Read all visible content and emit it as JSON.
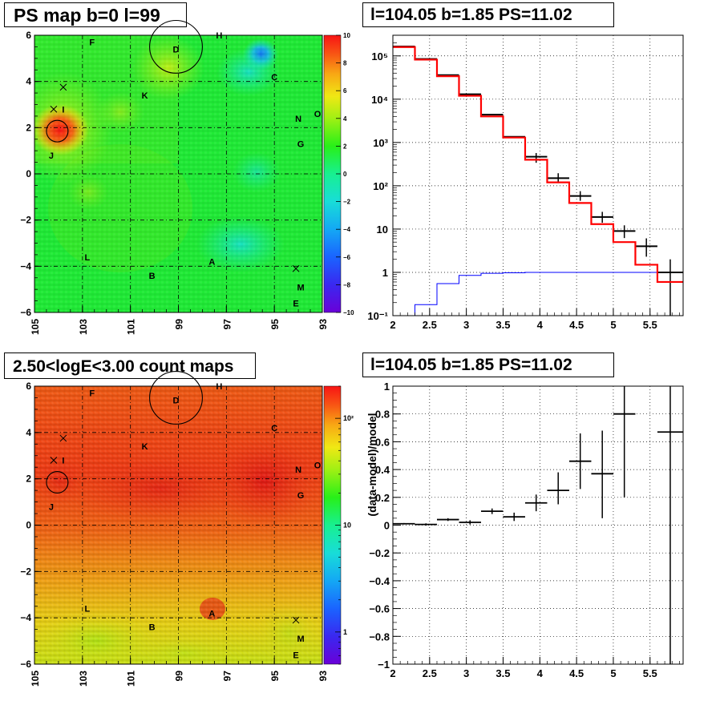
{
  "panels": {
    "ps_map": {
      "title": "PS map b=0 l=99"
    },
    "spectrum": {
      "title": "l=104.05 b=1.85 PS=11.02"
    },
    "count_map": {
      "title": "2.50<logE<3.00 count maps"
    },
    "residual": {
      "title": "l=104.05 b=1.85 PS=11.02"
    }
  },
  "chart_data": [
    {
      "type": "heatmap",
      "title": "PS map b=0 l=99",
      "x_ticks": [
        "105",
        "103",
        "101",
        "99",
        "97",
        "95",
        "93"
      ],
      "y_ticks": [
        "6",
        "4",
        "2",
        "0",
        "-2",
        "-4",
        "-6"
      ],
      "xlim": [
        105,
        93
      ],
      "ylim": [
        -6,
        6
      ],
      "colorbar": {
        "range": [
          -10,
          10
        ],
        "tick_labels": [
          "10",
          "8",
          "6",
          "4",
          "2",
          "0",
          "−2",
          "−4",
          "−6",
          "−8",
          "−10"
        ]
      },
      "source_labels": [
        {
          "text": "F",
          "l": 102.6,
          "b": 5.7
        },
        {
          "text": "D",
          "l": 99.1,
          "b": 5.4
        },
        {
          "text": "H",
          "l": 97.3,
          "b": 6.0
        },
        {
          "text": "C",
          "l": 95.0,
          "b": 4.2
        },
        {
          "text": "K",
          "l": 100.4,
          "b": 3.4
        },
        {
          "text": "N",
          "l": 94.0,
          "b": 2.4
        },
        {
          "text": "O",
          "l": 93.2,
          "b": 2.6
        },
        {
          "text": "G",
          "l": 93.9,
          "b": 1.3
        },
        {
          "text": "I",
          "l": 103.8,
          "b": 2.8
        },
        {
          "text": "J",
          "l": 104.3,
          "b": 0.8
        },
        {
          "text": "L",
          "l": 102.8,
          "b": -3.6
        },
        {
          "text": "A",
          "l": 97.6,
          "b": -3.8
        },
        {
          "text": "B",
          "l": 100.1,
          "b": -4.4
        },
        {
          "text": "M",
          "l": 93.9,
          "b": -4.9
        },
        {
          "text": "E",
          "l": 94.1,
          "b": -5.6
        }
      ],
      "markers": [
        {
          "shape": "circle",
          "l": 99.1,
          "b": 5.5,
          "radius_deg": 1.1
        },
        {
          "shape": "circle",
          "l": 104.05,
          "b": 1.85,
          "radius_deg": 0.45
        },
        {
          "shape": "cross",
          "l": 103.8,
          "b": 3.75
        },
        {
          "shape": "cross",
          "l": 104.2,
          "b": 2.8
        },
        {
          "shape": "cross",
          "l": 94.1,
          "b": -4.1
        }
      ]
    },
    {
      "type": "line",
      "title": "l=104.05 b=1.85 PS=11.02",
      "xlim": [
        2.0,
        5.95
      ],
      "ylim": [
        0.1,
        300000
      ],
      "y_scale": "log",
      "x_ticks": [
        "2",
        "2.5",
        "3",
        "3.5",
        "4",
        "4.5",
        "5",
        "5.5"
      ],
      "y_ticks": [
        "10⁻¹",
        "1",
        "10",
        "10²",
        "10³",
        "10⁴",
        "10⁵"
      ],
      "bin_edges": [
        2.0,
        2.3,
        2.6,
        2.9,
        3.2,
        3.5,
        3.8,
        4.1,
        4.4,
        4.7,
        5.0,
        5.3,
        5.6,
        5.95
      ],
      "series": [
        {
          "color": "#000000",
          "style": "points_with_errors",
          "values": [
            165000,
            85000,
            36000,
            13000,
            4400,
            1350,
            470,
            150,
            58,
            19,
            9,
            4,
            1.0
          ],
          "err_low": [
            0,
            0,
            0,
            0,
            0,
            0,
            130,
            35,
            13,
            5,
            2.8,
            1.7,
            0.9
          ],
          "err_high": [
            0,
            0,
            0,
            0,
            0,
            0,
            100,
            45,
            17,
            6,
            3.2,
            2.1,
            1.0
          ]
        },
        {
          "color": "#ff0000",
          "style": "histogram",
          "values": [
            160000,
            82000,
            34000,
            12000,
            4000,
            1300,
            400,
            120,
            40,
            13,
            5,
            1.5,
            0.6
          ]
        },
        {
          "color": "#0000ff",
          "style": "histogram",
          "values": [
            0.1,
            0.18,
            0.55,
            0.85,
            0.95,
            0.98,
            1.0,
            1.0,
            1.0,
            1.0,
            1.0,
            1.0,
            1.0
          ]
        }
      ]
    },
    {
      "type": "heatmap",
      "title": "2.50<logE<3.00 count maps",
      "x_ticks": [
        "105",
        "103",
        "101",
        "99",
        "97",
        "95",
        "93"
      ],
      "y_ticks": [
        "6",
        "4",
        "2",
        "0",
        "-2",
        "-4",
        "-6"
      ],
      "xlim": [
        105,
        93
      ],
      "ylim": [
        -6,
        6
      ],
      "colorbar": {
        "scale": "log",
        "range": [
          0.5,
          200
        ],
        "tick_labels": [
          "10²",
          "10",
          "1"
        ]
      },
      "source_labels": [
        {
          "text": "F",
          "l": 102.6,
          "b": 5.7
        },
        {
          "text": "D",
          "l": 99.1,
          "b": 5.4
        },
        {
          "text": "H",
          "l": 97.3,
          "b": 6.0
        },
        {
          "text": "C",
          "l": 95.0,
          "b": 4.2
        },
        {
          "text": "K",
          "l": 100.4,
          "b": 3.4
        },
        {
          "text": "N",
          "l": 94.0,
          "b": 2.4
        },
        {
          "text": "O",
          "l": 93.2,
          "b": 2.6
        },
        {
          "text": "G",
          "l": 93.9,
          "b": 1.3
        },
        {
          "text": "I",
          "l": 103.8,
          "b": 2.8
        },
        {
          "text": "J",
          "l": 104.3,
          "b": 0.8
        },
        {
          "text": "L",
          "l": 102.8,
          "b": -3.6
        },
        {
          "text": "A",
          "l": 97.6,
          "b": -3.8
        },
        {
          "text": "B",
          "l": 100.1,
          "b": -4.4
        },
        {
          "text": "M",
          "l": 93.9,
          "b": -4.9
        },
        {
          "text": "E",
          "l": 94.1,
          "b": -5.6
        }
      ],
      "markers": [
        {
          "shape": "circle",
          "l": 99.1,
          "b": 5.5,
          "radius_deg": 1.1
        },
        {
          "shape": "circle",
          "l": 104.05,
          "b": 1.85,
          "radius_deg": 0.45
        },
        {
          "shape": "cross",
          "l": 103.8,
          "b": 3.75
        },
        {
          "shape": "cross",
          "l": 104.2,
          "b": 2.8
        },
        {
          "shape": "cross",
          "l": 94.1,
          "b": -4.1
        }
      ]
    },
    {
      "type": "scatter",
      "title": "l=104.05 b=1.85 PS=11.02",
      "ylabel": "(data-model)/model",
      "xlim": [
        2.0,
        5.95
      ],
      "ylim": [
        -1,
        1
      ],
      "x_ticks": [
        "2",
        "2.5",
        "3",
        "3.5",
        "4",
        "4.5",
        "5",
        "5.5"
      ],
      "y_ticks": [
        "1",
        "0.8",
        "0.6",
        "0.4",
        "0.2",
        "0",
        "−0.2",
        "−0.4",
        "−0.6",
        "−0.8",
        "−1"
      ],
      "series": [
        {
          "color": "#000000",
          "points": [
            {
              "x": 2.15,
              "xerr": 0.15,
              "y": 0.01,
              "yerr_low": 0.005,
              "yerr_high": 0.005
            },
            {
              "x": 2.45,
              "xerr": 0.15,
              "y": 0.005,
              "yerr_low": 0.008,
              "yerr_high": 0.008
            },
            {
              "x": 2.75,
              "xerr": 0.15,
              "y": 0.04,
              "yerr_low": 0.01,
              "yerr_high": 0.01
            },
            {
              "x": 3.05,
              "xerr": 0.15,
              "y": 0.02,
              "yerr_low": 0.015,
              "yerr_high": 0.015
            },
            {
              "x": 3.35,
              "xerr": 0.15,
              "y": 0.1,
              "yerr_low": 0.02,
              "yerr_high": 0.02
            },
            {
              "x": 3.65,
              "xerr": 0.15,
              "y": 0.06,
              "yerr_low": 0.03,
              "yerr_high": 0.03
            },
            {
              "x": 3.95,
              "xerr": 0.15,
              "y": 0.16,
              "yerr_low": 0.06,
              "yerr_high": 0.06
            },
            {
              "x": 4.25,
              "xerr": 0.15,
              "y": 0.25,
              "yerr_low": 0.1,
              "yerr_high": 0.13
            },
            {
              "x": 4.55,
              "xerr": 0.15,
              "y": 0.46,
              "yerr_low": 0.2,
              "yerr_high": 0.2
            },
            {
              "x": 4.85,
              "xerr": 0.15,
              "y": 0.37,
              "yerr_low": 0.32,
              "yerr_high": 0.31
            },
            {
              "x": 5.15,
              "xerr": 0.15,
              "y": 0.8,
              "yerr_low": 0.6,
              "yerr_high": 0.2
            },
            {
              "x": 5.775,
              "xerr": 0.175,
              "y": 0.67,
              "yerr_low": 1.67,
              "yerr_high": 0.33
            }
          ]
        }
      ]
    }
  ]
}
